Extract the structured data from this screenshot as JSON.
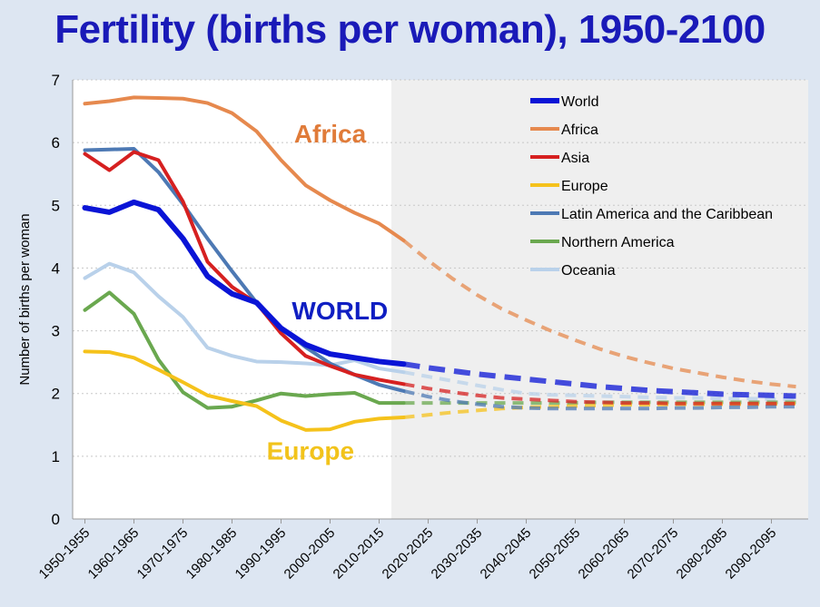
{
  "title": "Fertility (births per woman), 1950-2100",
  "chart_data": {
    "type": "line",
    "title": "Fertility (births per woman), 1950-2100",
    "ylabel": "Number of births per woman",
    "xlabel": "",
    "ylim": [
      0,
      7
    ],
    "yticks": [
      0,
      1,
      2,
      3,
      4,
      5,
      6,
      7
    ],
    "x": [
      "1950-1955",
      "1955-1960",
      "1960-1965",
      "1965-1970",
      "1970-1975",
      "1975-1980",
      "1980-1985",
      "1985-1990",
      "1990-1995",
      "1995-2000",
      "2000-2005",
      "2005-2010",
      "2010-2015",
      "2015-2020",
      "2020-2025",
      "2025-2030",
      "2030-2035",
      "2035-2040",
      "2040-2045",
      "2045-2050",
      "2050-2055",
      "2055-2060",
      "2060-2065",
      "2065-2070",
      "2070-2075",
      "2075-2080",
      "2080-2085",
      "2085-2090",
      "2090-2095",
      "2095-2100"
    ],
    "xtick_labels": [
      "1950-1955",
      "1960-1965",
      "1970-1975",
      "1980-1985",
      "1990-1995",
      "2000-2005",
      "2010-2015",
      "2020-2025",
      "2030-2035",
      "2040-2045",
      "2050-2055",
      "2060-2065",
      "2070-2075",
      "2080-2085",
      "2090-2095"
    ],
    "projection_start": "2015-2020",
    "projection_style": "dashed, shaded background",
    "grid": "horizontal dotted",
    "legend_position": "top-right",
    "series": [
      {
        "name": "World",
        "color": "#0a14d6",
        "values": [
          4.96,
          4.89,
          5.05,
          4.93,
          4.47,
          3.87,
          3.59,
          3.45,
          3.04,
          2.78,
          2.63,
          2.57,
          2.51,
          2.47,
          2.41,
          2.36,
          2.31,
          2.27,
          2.23,
          2.19,
          2.15,
          2.11,
          2.08,
          2.05,
          2.03,
          2.01,
          1.99,
          1.98,
          1.97,
          1.96
        ]
      },
      {
        "name": "Africa",
        "color": "#e6894e",
        "values": [
          6.62,
          6.66,
          6.72,
          6.71,
          6.7,
          6.63,
          6.47,
          6.18,
          5.72,
          5.32,
          5.08,
          4.88,
          4.71,
          4.44,
          4.12,
          3.83,
          3.57,
          3.35,
          3.17,
          3.0,
          2.85,
          2.71,
          2.59,
          2.49,
          2.4,
          2.33,
          2.26,
          2.2,
          2.15,
          2.11
        ]
      },
      {
        "name": "Asia",
        "color": "#d62020",
        "values": [
          5.82,
          5.56,
          5.85,
          5.72,
          5.06,
          4.1,
          3.7,
          3.44,
          2.96,
          2.6,
          2.44,
          2.3,
          2.22,
          2.15,
          2.08,
          2.02,
          1.97,
          1.93,
          1.91,
          1.89,
          1.87,
          1.86,
          1.85,
          1.85,
          1.84,
          1.84,
          1.84,
          1.84,
          1.84,
          1.84
        ]
      },
      {
        "name": "Europe",
        "color": "#f5c21b",
        "values": [
          2.67,
          2.66,
          2.57,
          2.38,
          2.18,
          1.97,
          1.88,
          1.8,
          1.57,
          1.42,
          1.43,
          1.55,
          1.6,
          1.62,
          1.66,
          1.7,
          1.73,
          1.76,
          1.78,
          1.79,
          1.8,
          1.81,
          1.82,
          1.82,
          1.83,
          1.83,
          1.83,
          1.83,
          1.83,
          1.84
        ]
      },
      {
        "name": "Latin America and the Caribbean",
        "color": "#4d79b4",
        "values": [
          5.88,
          5.89,
          5.9,
          5.53,
          5.02,
          4.47,
          3.95,
          3.45,
          3.04,
          2.74,
          2.48,
          2.3,
          2.14,
          2.04,
          1.95,
          1.88,
          1.83,
          1.79,
          1.77,
          1.76,
          1.76,
          1.76,
          1.76,
          1.76,
          1.77,
          1.77,
          1.78,
          1.78,
          1.79,
          1.79
        ]
      },
      {
        "name": "Northern America",
        "color": "#6aa84f",
        "values": [
          3.33,
          3.61,
          3.27,
          2.54,
          2.02,
          1.77,
          1.79,
          1.89,
          2.0,
          1.96,
          1.99,
          2.01,
          1.85,
          1.85,
          1.85,
          1.85,
          1.85,
          1.85,
          1.85,
          1.85,
          1.85,
          1.86,
          1.86,
          1.86,
          1.86,
          1.86,
          1.86,
          1.86,
          1.86,
          1.86
        ]
      },
      {
        "name": "Oceania",
        "color": "#b9d1ea",
        "values": [
          3.84,
          4.07,
          3.93,
          3.55,
          3.22,
          2.73,
          2.6,
          2.51,
          2.5,
          2.48,
          2.45,
          2.53,
          2.4,
          2.34,
          2.27,
          2.2,
          2.13,
          2.06,
          2.0,
          1.98,
          1.97,
          1.96,
          1.95,
          1.94,
          1.93,
          1.93,
          1.92,
          1.92,
          1.91,
          1.91
        ]
      }
    ],
    "annotations": [
      {
        "text": "Africa",
        "color": "#e07b39"
      },
      {
        "text": "WORLD",
        "color": "#0f1ec2"
      },
      {
        "text": "Europe",
        "color": "#f2c31b"
      }
    ]
  }
}
